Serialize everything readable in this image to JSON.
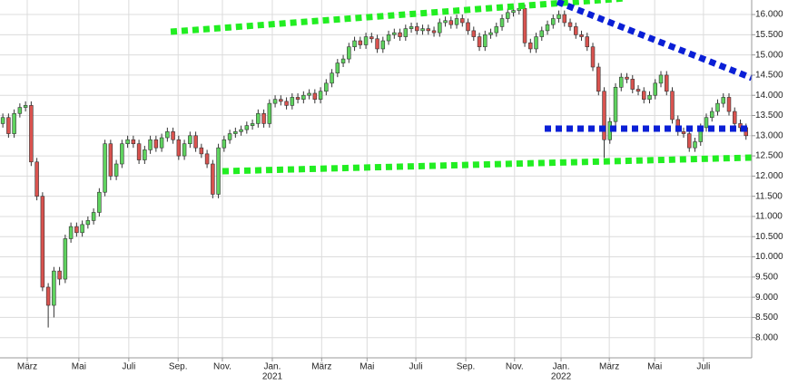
{
  "chart_data": {
    "type": "candlestick",
    "xlim": [
      -0.5,
      132
    ],
    "ylim": [
      7500,
      16360
    ],
    "grid": true,
    "up_color": "#5fd35f",
    "down_color": "#d9534f",
    "xticks": [
      {
        "value": 4.3,
        "label": "März"
      },
      {
        "value": 13.4,
        "label": "Mai"
      },
      {
        "value": 22.2,
        "label": "Juli"
      },
      {
        "value": 30.9,
        "label": "Sep."
      },
      {
        "value": 38.7,
        "label": "Nov."
      },
      {
        "value": 47.5,
        "label": "Jan.",
        "year": "2021"
      },
      {
        "value": 56.2,
        "label": "März"
      },
      {
        "value": 64.2,
        "label": "Mai"
      },
      {
        "value": 72.8,
        "label": "Juli"
      },
      {
        "value": 81.6,
        "label": "Sep."
      },
      {
        "value": 90.2,
        "label": "Nov."
      },
      {
        "value": 98.4,
        "label": "Jan.",
        "year": "2022"
      },
      {
        "value": 106.9,
        "label": "März"
      },
      {
        "value": 114.9,
        "label": "Mai"
      },
      {
        "value": 123.5,
        "label": "Juli"
      }
    ],
    "yticks": [
      {
        "value": 8000,
        "label": "8.000"
      },
      {
        "value": 8500,
        "label": "8.500"
      },
      {
        "value": 9000,
        "label": "9.000"
      },
      {
        "value": 9500,
        "label": "9.500"
      },
      {
        "value": 10000,
        "label": "10.000"
      },
      {
        "value": 10500,
        "label": "10.500"
      },
      {
        "value": 11000,
        "label": "11.000"
      },
      {
        "value": 11500,
        "label": "11.500"
      },
      {
        "value": 12000,
        "label": "12.000"
      },
      {
        "value": 12500,
        "label": "12.500"
      },
      {
        "value": 13000,
        "label": "13.000"
      },
      {
        "value": 13500,
        "label": "13.500"
      },
      {
        "value": 14000,
        "label": "14.000"
      },
      {
        "value": 14500,
        "label": "14.500"
      },
      {
        "value": 15000,
        "label": "15.000"
      },
      {
        "value": 15500,
        "label": "15.500"
      },
      {
        "value": 16000,
        "label": "16.000"
      }
    ],
    "series": [
      {
        "open": [
          13300,
          13450,
          13050,
          13550,
          13700,
          13750,
          12350,
          11500,
          9250,
          8800,
          9650,
          9450,
          10450,
          10750,
          10600,
          10800,
          10900,
          11100,
          11600,
          12800,
          12000,
          12300,
          12800,
          12900,
          12800,
          12400,
          12650,
          12900,
          12700,
          12950,
          13100,
          12900,
          12500,
          12800,
          13000,
          12700,
          12550,
          12300,
          11550,
          12700,
          12900,
          13050,
          13100,
          13150,
          13250,
          13300,
          13550,
          13300,
          13800,
          13900,
          13850,
          13750,
          13950,
          13900,
          14000,
          14050,
          13900,
          14100,
          14300,
          14550,
          14800,
          14900,
          15200,
          15350,
          15250,
          15450,
          15400,
          15150,
          15350,
          15500,
          15550,
          15450,
          15650,
          15700,
          15600,
          15650,
          15600,
          15550,
          15800,
          15850,
          15750,
          15900,
          15800,
          15600,
          15450,
          15200,
          15500,
          15550,
          15700,
          15900,
          16050,
          16100,
          16150,
          15300,
          15150,
          15450,
          15600,
          15750,
          15900,
          16000,
          15800,
          15700,
          15500,
          15450,
          15200,
          14700,
          14100,
          12900,
          13350,
          14200,
          14450,
          14400,
          14150,
          14100,
          13900,
          14000,
          14300,
          14500,
          14100,
          13400,
          13100,
          13050,
          12700,
          12850,
          13200,
          13450,
          13600,
          13800,
          13950,
          13600,
          13300,
          13200
        ],
        "high": [
          13550,
          13550,
          13650,
          13800,
          13850,
          13850,
          12450,
          11600,
          9350,
          9750,
          9750,
          10550,
          10850,
          10850,
          10900,
          11000,
          11200,
          11700,
          12900,
          12900,
          12400,
          12900,
          13000,
          13000,
          12900,
          12750,
          13000,
          13000,
          13050,
          13200,
          13200,
          13000,
          12900,
          13100,
          13100,
          12800,
          12650,
          12400,
          12800,
          13000,
          13150,
          13200,
          13250,
          13350,
          13400,
          13650,
          13650,
          13900,
          14000,
          14000,
          13950,
          14050,
          14050,
          14100,
          14150,
          14150,
          14200,
          14400,
          14650,
          14900,
          15000,
          15300,
          15450,
          15450,
          15550,
          15550,
          15500,
          15450,
          15600,
          15650,
          15650,
          15750,
          15800,
          15800,
          15750,
          15750,
          15700,
          15900,
          15950,
          15950,
          16000,
          16000,
          15900,
          15700,
          15550,
          15600,
          15650,
          15800,
          16000,
          16150,
          16200,
          16250,
          16250,
          15400,
          15550,
          15700,
          15850,
          16000,
          16100,
          16100,
          15900,
          15800,
          15600,
          15550,
          15300,
          14800,
          14200,
          13450,
          14300,
          14550,
          14550,
          14500,
          14250,
          14200,
          14100,
          14400,
          14600,
          14600,
          14200,
          13500,
          13200,
          13150,
          12950,
          13300,
          13550,
          13700,
          13900,
          14050,
          14050,
          13700,
          13400,
          13300
        ],
        "low": [
          13200,
          12950,
          12950,
          13450,
          13600,
          12250,
          11400,
          9150,
          8250,
          8500,
          9300,
          9350,
          10350,
          10500,
          10500,
          10700,
          10800,
          11000,
          11500,
          11900,
          11900,
          12200,
          12700,
          12700,
          12300,
          12300,
          12550,
          12600,
          12600,
          12850,
          12800,
          12400,
          12400,
          12700,
          12600,
          12450,
          12200,
          11450,
          11450,
          12600,
          12800,
          12950,
          13000,
          13050,
          13150,
          13200,
          13200,
          13200,
          13700,
          13750,
          13650,
          13650,
          13800,
          13800,
          13900,
          13800,
          13800,
          14000,
          14200,
          14450,
          14700,
          14800,
          15100,
          15150,
          15150,
          15300,
          15050,
          15050,
          15250,
          15400,
          15350,
          15350,
          15550,
          15500,
          15500,
          15500,
          15450,
          15450,
          15700,
          15650,
          15650,
          15700,
          15500,
          15350,
          15100,
          15100,
          15400,
          15450,
          15600,
          15800,
          15950,
          16000,
          15200,
          15050,
          15050,
          15350,
          15500,
          15650,
          15800,
          15700,
          15600,
          15400,
          15350,
          15100,
          14600,
          14000,
          12450,
          12800,
          13250,
          14100,
          14300,
          14050,
          14000,
          13800,
          13800,
          13900,
          14200,
          14000,
          13300,
          13000,
          12950,
          12600,
          12600,
          12750,
          13100,
          13350,
          13500,
          13700,
          13500,
          13200,
          13100,
          12900
        ],
        "close": [
          13450,
          13050,
          13550,
          13700,
          13750,
          12350,
          11500,
          9250,
          8800,
          9650,
          9450,
          10450,
          10750,
          10600,
          10800,
          10900,
          11100,
          11600,
          12800,
          12000,
          12300,
          12800,
          12900,
          12800,
          12400,
          12650,
          12900,
          12700,
          12950,
          13100,
          12900,
          12500,
          12800,
          13000,
          12700,
          12550,
          12300,
          11550,
          12700,
          12900,
          13050,
          13100,
          13150,
          13250,
          13300,
          13550,
          13300,
          13800,
          13900,
          13850,
          13750,
          13950,
          13900,
          14000,
          14050,
          13900,
          14100,
          14300,
          14550,
          14800,
          14900,
          15200,
          15350,
          15250,
          15450,
          15400,
          15150,
          15350,
          15500,
          15550,
          15450,
          15650,
          15700,
          15600,
          15650,
          15600,
          15550,
          15800,
          15850,
          15750,
          15900,
          15800,
          15600,
          15450,
          15200,
          15500,
          15550,
          15700,
          15900,
          16050,
          16100,
          16150,
          15300,
          15150,
          15450,
          15600,
          15750,
          15900,
          16000,
          15800,
          15700,
          15500,
          15450,
          15200,
          14700,
          14100,
          12900,
          13350,
          14200,
          14450,
          14400,
          14150,
          14100,
          13900,
          14000,
          14300,
          14500,
          14100,
          13400,
          13100,
          13050,
          12700,
          12850,
          13200,
          13450,
          13600,
          13800,
          13950,
          13600,
          13300,
          13200,
          13000
        ]
      }
    ]
  }
}
